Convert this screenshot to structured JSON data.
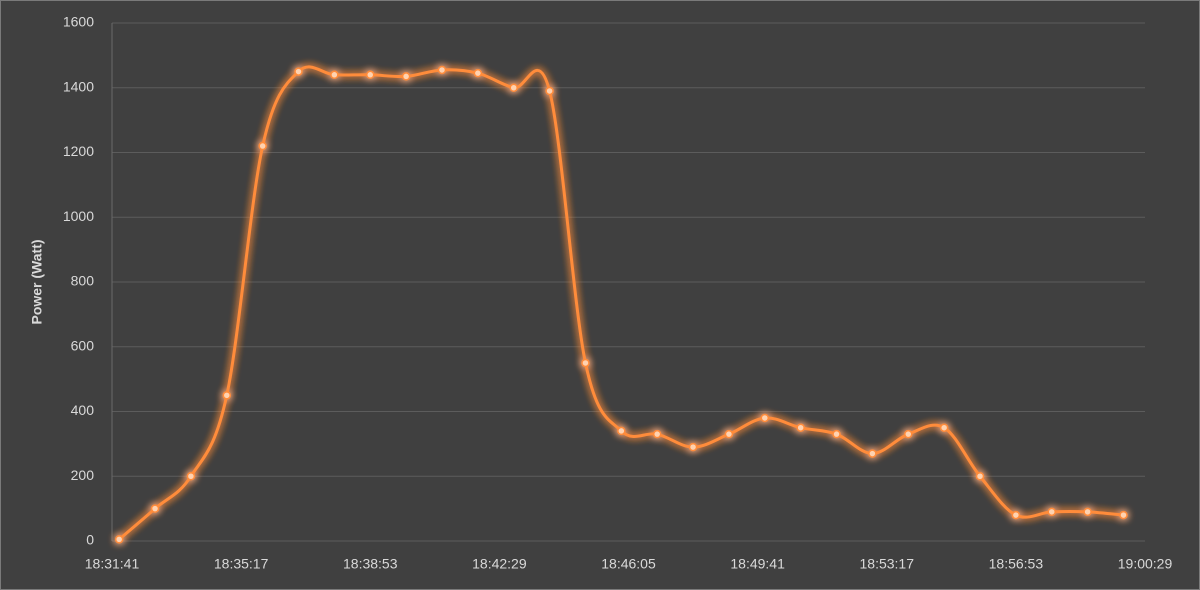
{
  "chart_data": {
    "type": "line",
    "y_label": "Power (Watt)",
    "x": [
      "18:31:53",
      "18:32:53",
      "18:33:53",
      "18:34:53",
      "18:35:53",
      "18:36:53",
      "18:37:53",
      "18:38:53",
      "18:39:53",
      "18:40:53",
      "18:41:53",
      "18:42:53",
      "18:43:53",
      "18:44:53",
      "18:45:53",
      "18:46:53",
      "18:47:53",
      "18:48:53",
      "18:49:53",
      "18:50:53",
      "18:51:53",
      "18:52:53",
      "18:53:53",
      "18:54:53",
      "18:55:53",
      "18:56:53",
      "18:57:53",
      "18:58:53",
      "18:59:53"
    ],
    "series": [
      {
        "color": "#ff8c3a",
        "values": [
          5,
          100,
          200,
          450,
          1220,
          1450,
          1440,
          1440,
          1435,
          1455,
          1445,
          1400,
          1390,
          550,
          340,
          330,
          290,
          330,
          380,
          350,
          330,
          270,
          330,
          350,
          200,
          80,
          90,
          90,
          80
        ]
      }
    ],
    "xlim": [
      "18:31:41",
      "19:00:29"
    ],
    "xticks": [
      "18:31:41",
      "18:35:17",
      "18:38:53",
      "18:42:29",
      "18:46:05",
      "18:49:41",
      "18:53:17",
      "18:56:53",
      "19:00:29"
    ],
    "ylim": [
      0,
      1600
    ],
    "yticks": [
      0,
      200,
      400,
      600,
      800,
      1000,
      1200,
      1400,
      1600
    ],
    "grid": true
  }
}
